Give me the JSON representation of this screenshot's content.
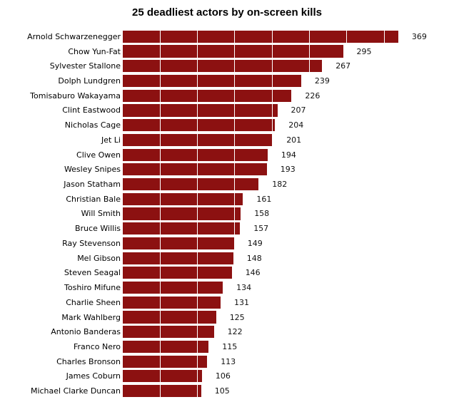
{
  "title": "25 deadliest actors by on-screen kills",
  "colors": {
    "bar": "#8c1111",
    "grid_line": "#ffffff",
    "title_text": "#000000",
    "category_text": "#000000",
    "value_text": "#111111",
    "background": "#ffffff"
  },
  "chart_data": {
    "type": "bar",
    "orientation": "horizontal",
    "title": "25 deadliest actors by on-screen kills",
    "xlabel": "",
    "ylabel": "",
    "categories": [
      "Arnold Schwarzenegger",
      "Chow Yun-Fat",
      "Sylvester Stallone",
      "Dolph Lundgren",
      "Tomisaburo Wakayama",
      "Clint Eastwood",
      "Nicholas Cage",
      "Jet Li",
      "Clive Owen",
      "Wesley Snipes",
      "Jason Statham",
      "Christian Bale",
      "Will Smith",
      "Bruce Willis",
      "Ray Stevenson",
      "Mel Gibson",
      "Steven Seagal",
      "Toshiro Mifune",
      "Charlie Sheen",
      "Mark Wahlberg",
      "Antonio Banderas",
      "Franco Nero",
      "Charles Bronson",
      "James Coburn",
      "Michael Clarke Duncan"
    ],
    "values": [
      369,
      295,
      267,
      239,
      226,
      207,
      204,
      201,
      194,
      193,
      182,
      161,
      158,
      157,
      149,
      148,
      146,
      134,
      131,
      125,
      122,
      115,
      113,
      106,
      105
    ],
    "value_labels_shown": true,
    "xlim": [
      0,
      443
    ],
    "grid_interval": 50,
    "grid_on": true,
    "grid_visible_over_bars_only": true,
    "legend": "none"
  }
}
